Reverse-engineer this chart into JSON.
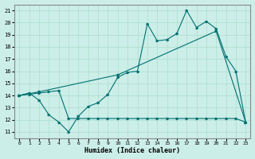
{
  "title": "",
  "xlabel": "Humidex (Indice chaleur)",
  "bg_color": "#cceee8",
  "grid_color": "#aaddcc",
  "line_color": "#007070",
  "xlim": [
    -0.5,
    23.5
  ],
  "ylim": [
    10.5,
    21.5
  ],
  "xticks": [
    0,
    1,
    2,
    3,
    4,
    5,
    6,
    7,
    8,
    9,
    10,
    11,
    12,
    13,
    14,
    15,
    16,
    17,
    18,
    19,
    20,
    21,
    22,
    23
  ],
  "yticks": [
    11,
    12,
    13,
    14,
    15,
    16,
    17,
    18,
    19,
    20,
    21
  ],
  "line1_x": [
    0,
    1,
    2,
    3,
    4,
    5,
    6,
    7,
    8,
    9,
    10,
    11,
    12,
    13,
    14,
    15,
    16,
    17,
    18,
    19,
    20,
    21,
    22,
    23
  ],
  "line1_y": [
    14.0,
    14.2,
    13.6,
    12.4,
    11.8,
    11.0,
    12.3,
    13.1,
    13.4,
    14.1,
    15.5,
    15.9,
    16.0,
    19.9,
    18.5,
    18.6,
    19.1,
    21.0,
    19.6,
    20.1,
    19.5,
    17.2,
    16.0,
    11.8
  ],
  "line2_x": [
    0,
    1,
    2,
    3,
    4,
    5,
    6,
    7,
    8,
    9,
    10,
    11,
    12,
    13,
    14,
    15,
    16,
    17,
    18,
    19,
    20,
    21,
    22,
    23
  ],
  "line2_y": [
    14.0,
    14.1,
    14.2,
    14.3,
    14.4,
    12.1,
    12.1,
    12.1,
    12.1,
    12.1,
    12.1,
    12.1,
    12.1,
    12.1,
    12.1,
    12.1,
    12.1,
    12.1,
    12.1,
    12.1,
    12.1,
    12.1,
    12.1,
    11.8
  ],
  "line3_x": [
    0,
    2,
    10,
    20,
    23
  ],
  "line3_y": [
    14.0,
    14.3,
    15.7,
    19.3,
    11.8
  ]
}
